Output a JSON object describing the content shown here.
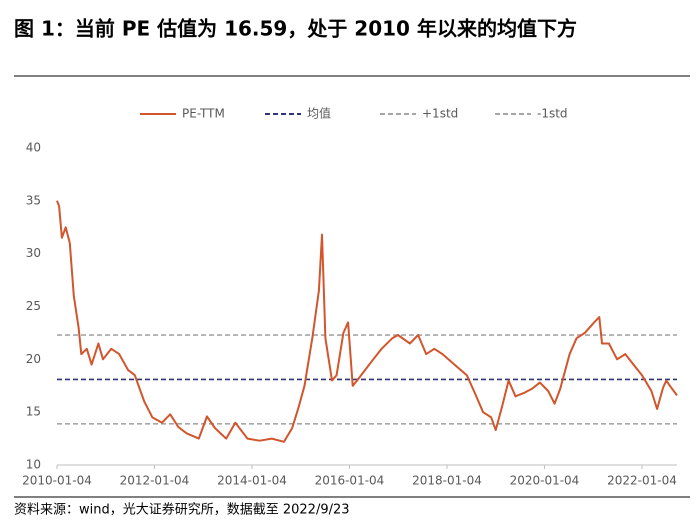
{
  "chart_data": {
    "type": "line",
    "title": "图 1：当前 PE 估值为 16.59，处于 2010 年以来的均值下方",
    "source": "资料来源：wind，光大证券研究所，数据截至 2022/9/23",
    "x": [
      "2010-01-04",
      "2010-01-20",
      "2010-02-10",
      "2010-03-10",
      "2010-04-10",
      "2010-05-10",
      "2010-06-15",
      "2010-07-05",
      "2010-08-15",
      "2010-09-20",
      "2010-11-10",
      "2010-12-15",
      "2011-02-15",
      "2011-04-15",
      "2011-06-20",
      "2011-08-10",
      "2011-10-20",
      "2011-12-20",
      "2012-03-01",
      "2012-05-01",
      "2012-07-01",
      "2012-09-01",
      "2012-12-01",
      "2013-02-01",
      "2013-04-01",
      "2013-06-25",
      "2013-09-01",
      "2013-12-01",
      "2014-03-01",
      "2014-06-01",
      "2014-09-01",
      "2014-11-01",
      "2014-12-20",
      "2015-02-01",
      "2015-04-01",
      "2015-05-20",
      "2015-06-12",
      "2015-07-08",
      "2015-08-26",
      "2015-09-30",
      "2015-11-20",
      "2015-12-25",
      "2016-01-28",
      "2016-03-01",
      "2016-05-01",
      "2016-07-01",
      "2016-09-01",
      "2016-11-20",
      "2017-01-01",
      "2017-04-01",
      "2017-06-01",
      "2017-08-01",
      "2017-10-01",
      "2017-12-01",
      "2018-03-01",
      "2018-06-01",
      "2018-08-01",
      "2018-10-01",
      "2018-12-01",
      "2019-01-04",
      "2019-02-20",
      "2019-04-10",
      "2019-06-01",
      "2019-08-01",
      "2019-10-01",
      "2019-12-01",
      "2020-02-01",
      "2020-03-20",
      "2020-05-01",
      "2020-07-10",
      "2020-09-01",
      "2020-11-01",
      "2021-01-10",
      "2021-02-18",
      "2021-03-10",
      "2021-05-01",
      "2021-07-01",
      "2021-09-01",
      "2021-11-01",
      "2022-01-04",
      "2022-03-15",
      "2022-04-27",
      "2022-06-10",
      "2022-07-05",
      "2022-08-01",
      "2022-09-23"
    ],
    "series": [
      {
        "name": "PE-TTM",
        "color": "#d2552d",
        "values": [
          35,
          34.5,
          31.5,
          32.5,
          31,
          26,
          23,
          20.5,
          21,
          19.5,
          21.5,
          20,
          21,
          20.5,
          19,
          18.5,
          16,
          14.5,
          14,
          14.8,
          13.6,
          13,
          12.5,
          14.6,
          13.5,
          12.5,
          14,
          12.5,
          12.3,
          12.5,
          12.2,
          13.5,
          15.5,
          17.5,
          22,
          26.5,
          31.8,
          22,
          18,
          18.5,
          22.5,
          23.5,
          17.5,
          18,
          19,
          20,
          21,
          22,
          22.3,
          21.5,
          22.3,
          20.5,
          21,
          20.5,
          19.5,
          18.5,
          16.8,
          15,
          14.5,
          13.3,
          15.5,
          18,
          16.5,
          16.8,
          17.2,
          17.8,
          17,
          15.8,
          17.2,
          20.5,
          22,
          22.5,
          23.5,
          24,
          21.5,
          21.5,
          20,
          20.5,
          19.5,
          18.5,
          17,
          15.3,
          17.3,
          18,
          17.5,
          16.59
        ]
      }
    ],
    "reference_lines": [
      {
        "name": "均值",
        "color": "#2e3475",
        "value": 18.1
      },
      {
        "name": "+1std",
        "color": "#a6a6a6",
        "value": 22.3
      },
      {
        "name": "-1std",
        "color": "#a6a6a6",
        "value": 13.9
      }
    ],
    "xlim": [
      "2010-01-04",
      "2022-09-23"
    ],
    "xticks": [
      "2010-01-04",
      "2012-01-04",
      "2014-01-04",
      "2016-01-04",
      "2018-01-04",
      "2020-01-04",
      "2022-01-04"
    ],
    "ylim": [
      10,
      40
    ],
    "yticks": [
      10,
      15,
      20,
      25,
      30,
      35,
      40
    ],
    "grid": false
  }
}
